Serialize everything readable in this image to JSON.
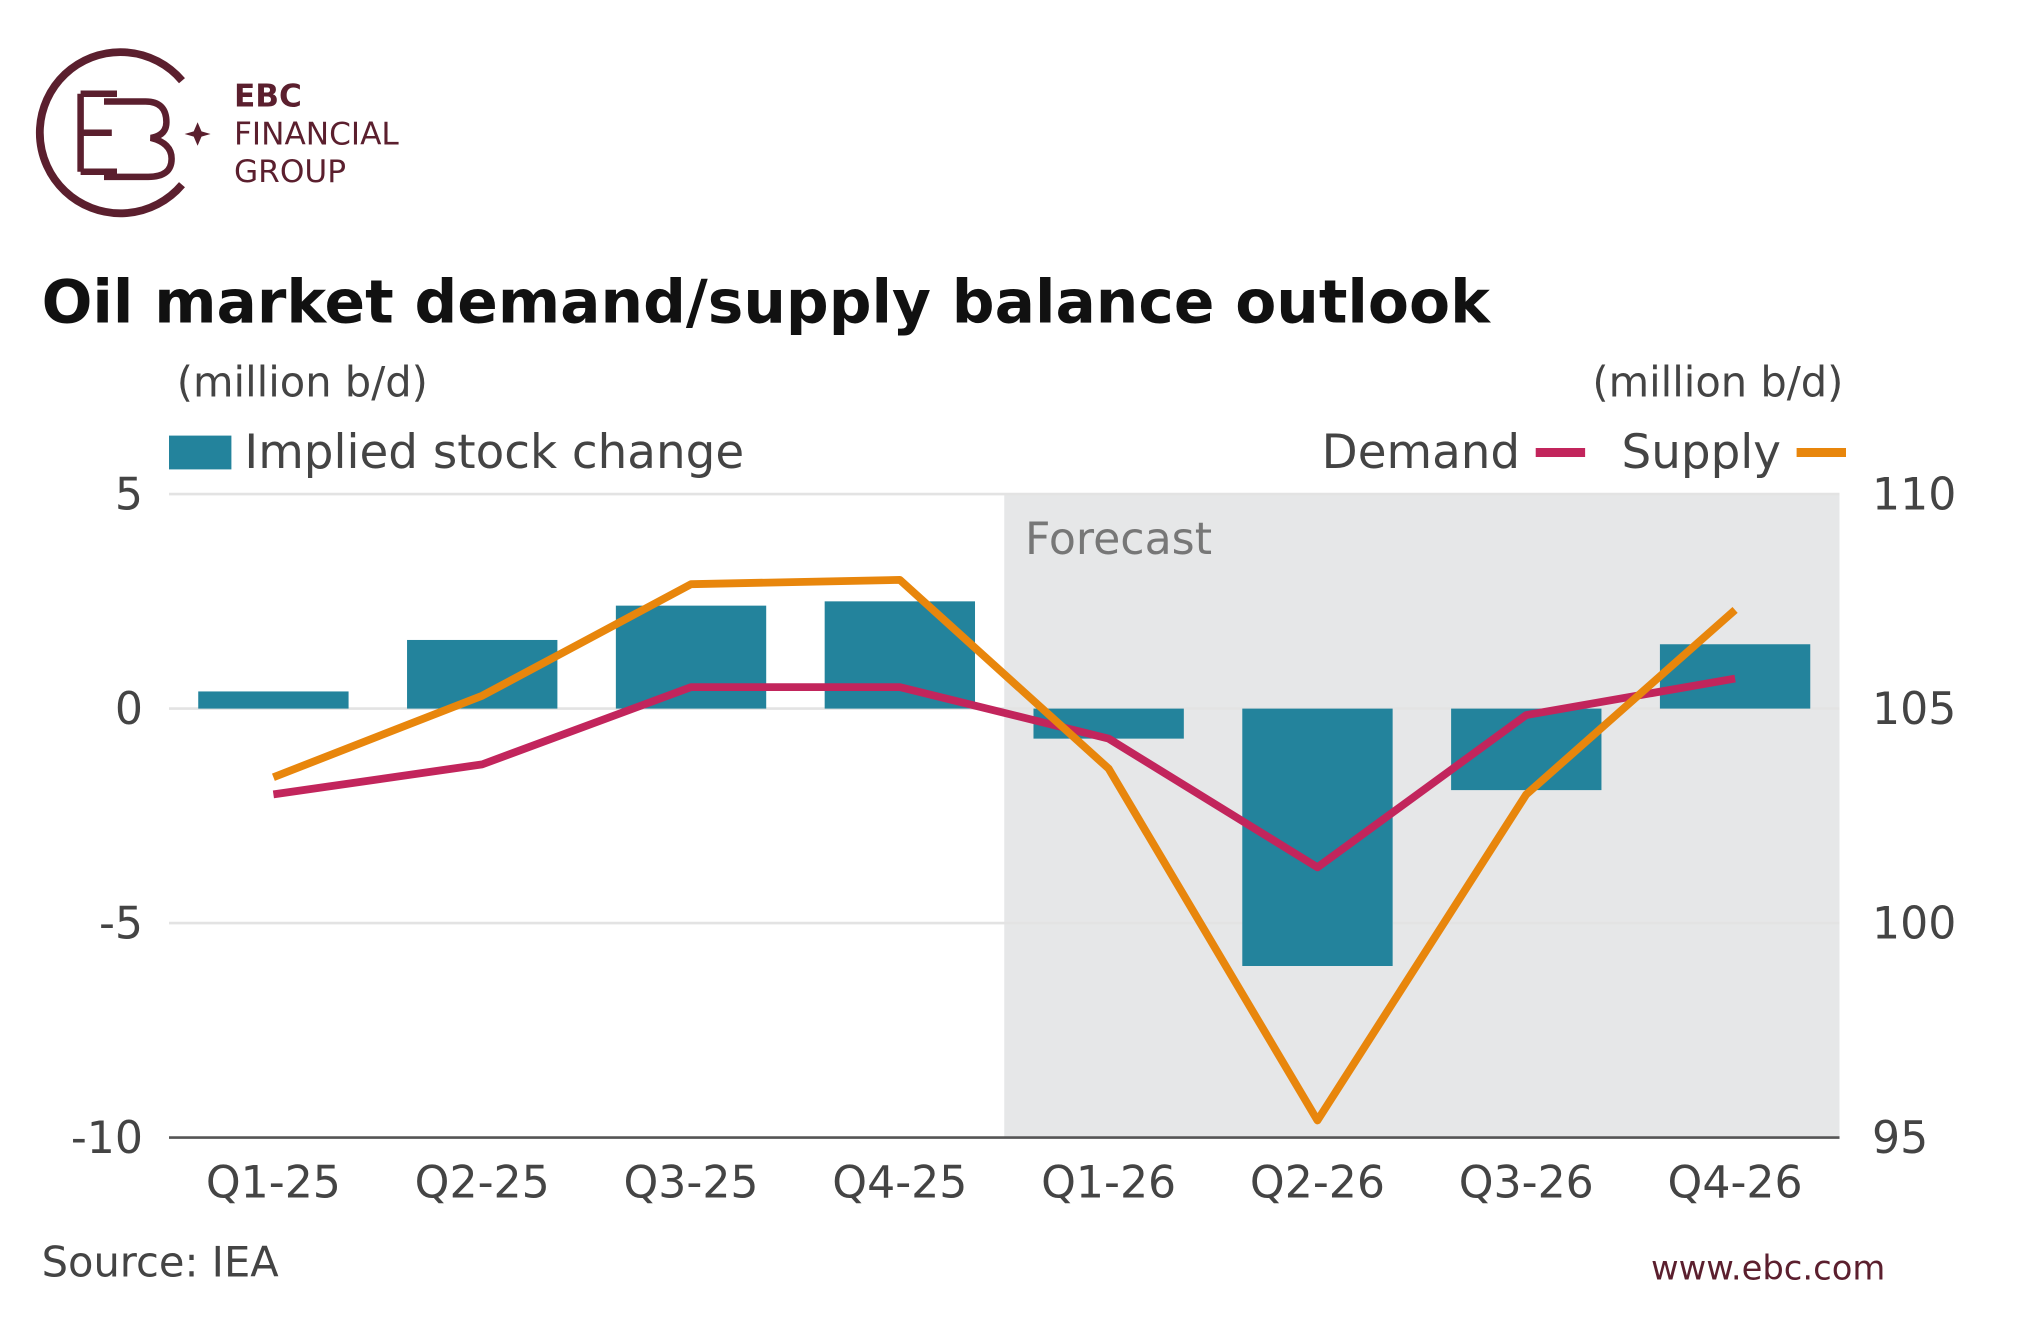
{
  "logo": {
    "line1": "EBC",
    "line2": "FINANCIAL",
    "line3": "GROUP"
  },
  "chart_data": {
    "type": "combo",
    "title": "Oil market demand/supply balance outlook",
    "y_axis_label": "(million b/d)",
    "y2_axis_label": "(million b/d)",
    "categories": [
      "Q1-25",
      "Q2-25",
      "Q3-25",
      "Q4-25",
      "Q1-26",
      "Q2-26",
      "Q3-26",
      "Q4-26"
    ],
    "series": [
      {
        "name": "Implied stock change",
        "type": "bar",
        "color": "#23839c",
        "values": [
          0.4,
          1.6,
          2.4,
          2.5,
          -0.7,
          -6.0,
          -1.9,
          1.5
        ]
      },
      {
        "name": "Demand",
        "type": "line",
        "axis": "y2",
        "color": "#c2255c",
        "values": [
          103.0,
          103.7,
          105.5,
          105.5,
          104.3,
          101.3,
          104.85,
          105.7
        ]
      },
      {
        "name": "Supply",
        "type": "line",
        "axis": "y2",
        "color": "#e8860c",
        "values": [
          103.4,
          105.3,
          107.9,
          108.0,
          103.6,
          95.4,
          103.0,
          107.3
        ]
      }
    ],
    "ylim": [
      -10,
      5
    ],
    "yticks": [
      -10,
      -5,
      0,
      5
    ],
    "y2lim": [
      95,
      110
    ],
    "y2ticks": [
      95,
      100,
      105,
      110
    ],
    "grid": true,
    "annotations": [
      {
        "text": "Forecast",
        "category": "Q1-26"
      }
    ],
    "source": "Source: IEA"
  },
  "footer": {
    "website": "www.ebc.com"
  }
}
